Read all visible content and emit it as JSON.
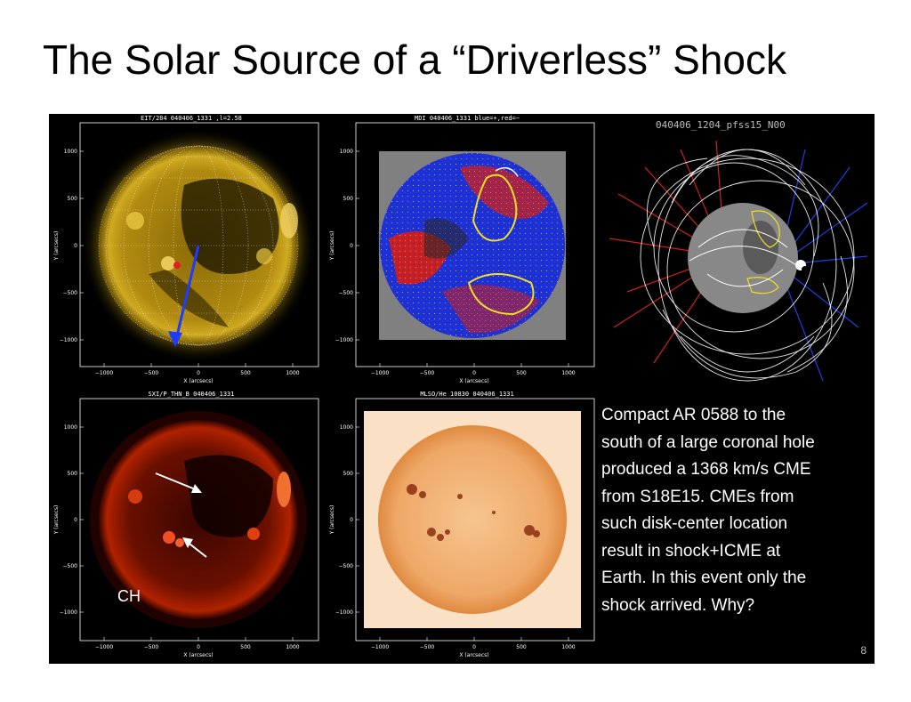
{
  "slide": {
    "title": "The Solar Source of a “Driverless” Shock",
    "page_number": "8"
  },
  "axes": {
    "x_label": "X (arcsecs)",
    "y_label": "Y (arcsecs)",
    "x_ticks": [
      "−1000",
      "−500",
      "0",
      "500",
      "1000"
    ],
    "y_ticks": [
      "1000",
      "500",
      "0",
      "−500",
      "−1000"
    ]
  },
  "panels": {
    "eit": {
      "title": "EIT/284   040406_1331 ,l=2.58"
    },
    "mdi": {
      "title": "MDI  040406_1331 blue=+,red=−"
    },
    "pfss": {
      "title": "040406_1204_pfss15_N00"
    },
    "sxi": {
      "title": "SXI/P_THN_B  040406_1331"
    },
    "mlso": {
      "title": "MLSO/He 10830  040406_1331"
    }
  },
  "annotations": {
    "ch": "CH",
    "ar": "AR 0588"
  },
  "description": {
    "lines": [
      "Compact AR 0588 to the",
      "south of a large coronal hole",
      "produced a 1368 km/s CME",
      "from S18E15. CMEs from",
      "such  disk-center location",
      "result in shock+ICME at",
      "Earth.  In this event only the",
      "shock arrived.  Why?"
    ]
  },
  "colors": {
    "eit_disk": "#c9a416",
    "mdi_positive": "#1a30d8",
    "mdi_negative": "#d02222",
    "sxi_disk": "#a01a00",
    "mlso_disk": "#f0b070",
    "arrow": "#1e3cff"
  }
}
